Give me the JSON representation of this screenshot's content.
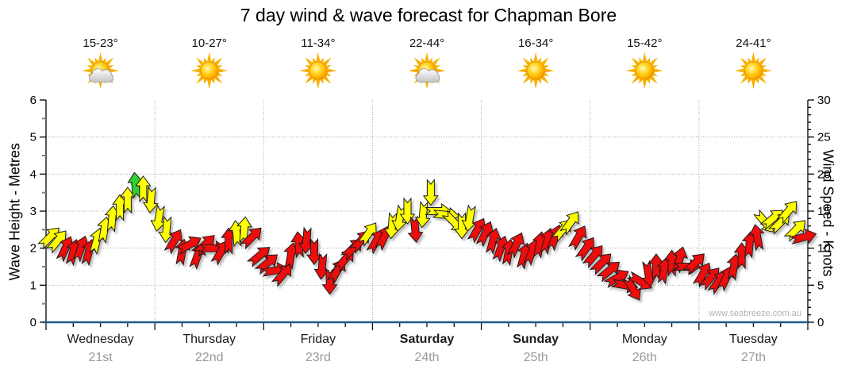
{
  "title": "7 day wind & wave forecast for Chapman Bore",
  "watermark": "www.seabreeze.com.au",
  "chart_data": {
    "type": "wind-arrow-timeseries",
    "title": "7 day wind & wave forecast for Chapman Bore",
    "y_left": {
      "label": "Wave Height - Metres",
      "min": 0,
      "max": 6,
      "ticks": [
        0,
        1,
        2,
        3,
        4,
        5,
        6
      ]
    },
    "y_right": {
      "label": "Wind Speed - Knots",
      "min": 0,
      "max": 30,
      "ticks": [
        0,
        5,
        10,
        15,
        20,
        25,
        30
      ]
    },
    "grid": {
      "horizontal_knots": [
        5,
        10,
        15,
        20,
        25
      ],
      "vertical_day_boundaries": true
    },
    "days": [
      {
        "name": "Wednesday",
        "date": "21st",
        "temp": "15-23°",
        "icon": "sun-cloud",
        "bold": false
      },
      {
        "name": "Thursday",
        "date": "22nd",
        "temp": "10-27°",
        "icon": "sun",
        "bold": false
      },
      {
        "name": "Friday",
        "date": "23rd",
        "temp": "11-34°",
        "icon": "sun",
        "bold": false
      },
      {
        "name": "Saturday",
        "date": "24th",
        "temp": "22-44°",
        "icon": "sun-cloud",
        "bold": true
      },
      {
        "name": "Sunday",
        "date": "25th",
        "temp": "16-34°",
        "icon": "sun",
        "bold": true
      },
      {
        "name": "Monday",
        "date": "26th",
        "temp": "15-42°",
        "icon": "sun",
        "bold": false
      },
      {
        "name": "Tuesday",
        "date": "27th",
        "temp": "24-41°",
        "icon": "sun",
        "bold": false
      }
    ],
    "colors": {
      "arrow_yellow": "#ffff00",
      "arrow_red": "#ed1111",
      "arrow_green": "#2fd131",
      "x_axis": "#1f5b8d",
      "axis_black": "#000000",
      "grid_gray": "#a8a8a8",
      "date_gray": "#999999",
      "watermark_gray": "#b3b3b3"
    },
    "arrows_note": "14 samples per day; each item = [knots, direction_deg_clockwise_from_up, color y|r|g]",
    "arrows": [
      [
        11.5,
        45,
        "y"
      ],
      [
        11,
        40,
        "y"
      ],
      [
        10,
        25,
        "r"
      ],
      [
        9.5,
        15,
        "r"
      ],
      [
        10,
        20,
        "r"
      ],
      [
        9.5,
        15,
        "r"
      ],
      [
        11,
        15,
        "y"
      ],
      [
        12.5,
        10,
        "y"
      ],
      [
        14,
        5,
        "y"
      ],
      [
        15.5,
        0,
        "y"
      ],
      [
        16.5,
        0,
        "y"
      ],
      [
        18.5,
        355,
        "g"
      ],
      [
        18,
        0,
        "y"
      ],
      [
        16.5,
        185,
        "y"
      ],
      [
        14,
        190,
        "y"
      ],
      [
        12.5,
        185,
        "y"
      ],
      [
        11,
        30,
        "r"
      ],
      [
        9.5,
        10,
        "r"
      ],
      [
        10.5,
        60,
        "r"
      ],
      [
        9,
        20,
        "r"
      ],
      [
        10.5,
        45,
        "r"
      ],
      [
        10,
        90,
        "r"
      ],
      [
        9.5,
        30,
        "r"
      ],
      [
        11,
        0,
        "r"
      ],
      [
        12,
        355,
        "y"
      ],
      [
        12.5,
        5,
        "y"
      ],
      [
        11.5,
        45,
        "r"
      ],
      [
        9,
        50,
        "r"
      ],
      [
        8,
        50,
        "r"
      ],
      [
        7,
        80,
        "r"
      ],
      [
        6.5,
        40,
        "r"
      ],
      [
        9,
        10,
        "r"
      ],
      [
        10.5,
        355,
        "r"
      ],
      [
        11,
        185,
        "r"
      ],
      [
        9.5,
        180,
        "r"
      ],
      [
        7.5,
        185,
        "r"
      ],
      [
        5.5,
        180,
        "r"
      ],
      [
        7,
        30,
        "r"
      ],
      [
        8.5,
        40,
        "r"
      ],
      [
        10,
        45,
        "r"
      ],
      [
        11,
        40,
        "r"
      ],
      [
        12,
        35,
        "y"
      ],
      [
        11,
        30,
        "r"
      ],
      [
        11.5,
        25,
        "r"
      ],
      [
        13,
        185,
        "y"
      ],
      [
        14,
        190,
        "y"
      ],
      [
        15,
        180,
        "y"
      ],
      [
        12.5,
        175,
        "r"
      ],
      [
        14.5,
        185,
        "y"
      ],
      [
        17.5,
        180,
        "y"
      ],
      [
        15,
        90,
        "y"
      ],
      [
        14.5,
        95,
        "y"
      ],
      [
        13.5,
        135,
        "y"
      ],
      [
        13,
        180,
        "y"
      ],
      [
        14,
        190,
        "y"
      ],
      [
        12.5,
        30,
        "r"
      ],
      [
        12,
        25,
        "r"
      ],
      [
        11,
        15,
        "r"
      ],
      [
        10,
        20,
        "r"
      ],
      [
        9.5,
        10,
        "r"
      ],
      [
        10.5,
        25,
        "r"
      ],
      [
        9,
        15,
        "r"
      ],
      [
        9.5,
        20,
        "r"
      ],
      [
        10.5,
        10,
        "r"
      ],
      [
        11,
        15,
        "r"
      ],
      [
        11.5,
        20,
        "r"
      ],
      [
        12.5,
        40,
        "y"
      ],
      [
        13.5,
        35,
        "y"
      ],
      [
        11.5,
        30,
        "r"
      ],
      [
        10,
        35,
        "r"
      ],
      [
        9,
        40,
        "r"
      ],
      [
        8,
        45,
        "r"
      ],
      [
        7,
        50,
        "r"
      ],
      [
        6,
        60,
        "r"
      ],
      [
        5,
        100,
        "r"
      ],
      [
        4.5,
        150,
        "r"
      ],
      [
        5.5,
        120,
        "r"
      ],
      [
        6.5,
        170,
        "r"
      ],
      [
        7.5,
        0,
        "r"
      ],
      [
        7,
        10,
        "r"
      ],
      [
        8,
        0,
        "r"
      ],
      [
        8.5,
        15,
        "r"
      ],
      [
        7.5,
        90,
        "r"
      ],
      [
        8,
        45,
        "r"
      ],
      [
        6.5,
        30,
        "r"
      ],
      [
        6,
        40,
        "r"
      ],
      [
        5.5,
        35,
        "r"
      ],
      [
        6,
        25,
        "r"
      ],
      [
        7.5,
        10,
        "r"
      ],
      [
        9,
        0,
        "r"
      ],
      [
        10.5,
        5,
        "r"
      ],
      [
        11.5,
        350,
        "r"
      ],
      [
        13.5,
        140,
        "y"
      ],
      [
        14,
        50,
        "y"
      ],
      [
        13.5,
        45,
        "y"
      ],
      [
        15,
        40,
        "y"
      ],
      [
        12.5,
        45,
        "y"
      ],
      [
        11.5,
        75,
        "r"
      ]
    ]
  }
}
